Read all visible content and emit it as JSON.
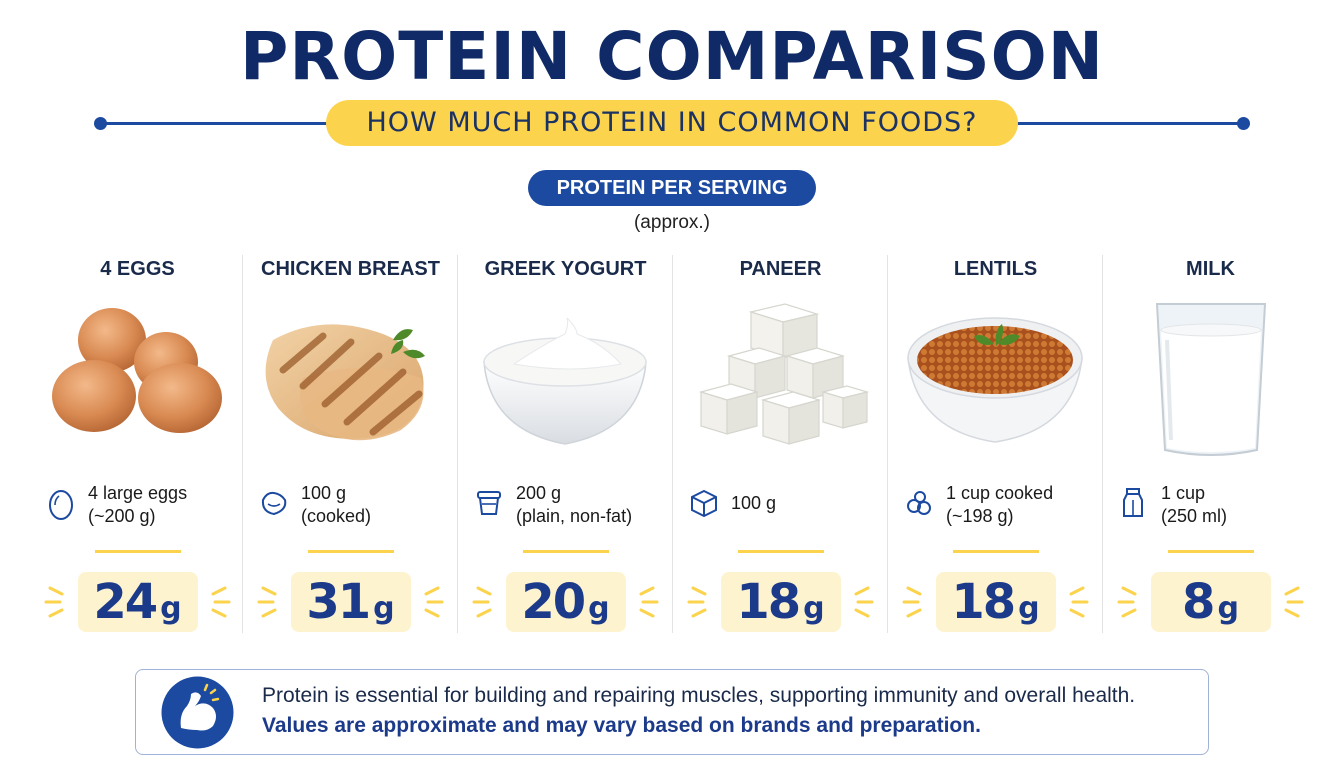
{
  "header": {
    "title": "PROTEIN COMPARISON",
    "subtitle": "HOW MUCH PROTEIN IN COMMON FOODS?",
    "pill": "PROTEIN PER SERVING",
    "approx": "(approx.)"
  },
  "foods": [
    {
      "name": "4 EGGS",
      "serving1": "4 large eggs",
      "serving2": "(~200 g)",
      "value": "24",
      "unit": "g",
      "serving_icon": "egg-icon"
    },
    {
      "name": "CHICKEN BREAST",
      "serving1": "100 g",
      "serving2": "(cooked)",
      "value": "31",
      "unit": "g",
      "serving_icon": "chicken-icon"
    },
    {
      "name": "GREEK YOGURT",
      "serving1": "200 g",
      "serving2": "(plain, non-fat)",
      "value": "20",
      "unit": "g",
      "serving_icon": "yogurt-cup-icon"
    },
    {
      "name": "PANEER",
      "serving1": "100 g",
      "serving2": "",
      "value": "18",
      "unit": "g",
      "serving_icon": "cube-icon"
    },
    {
      "name": "LENTILS",
      "serving1": "1 cup cooked",
      "serving2": "(~198 g)",
      "value": "18",
      "unit": "g",
      "serving_icon": "lentils-icon"
    },
    {
      "name": "MILK",
      "serving1": "1 cup",
      "serving2": "(250 ml)",
      "value": "8",
      "unit": "g",
      "serving_icon": "milk-carton-icon"
    }
  ],
  "note": {
    "line1": "Protein is essential for building and repairing muscles, supporting immunity and overall health.",
    "line2": "Values are approximate and may vary based on brands and preparation.",
    "icon": "flexed-arm-icon"
  },
  "colors": {
    "navy": "#0f2a66",
    "blue": "#1c4aa0",
    "yellow": "#fbd34d",
    "cream": "#fef3cf"
  }
}
